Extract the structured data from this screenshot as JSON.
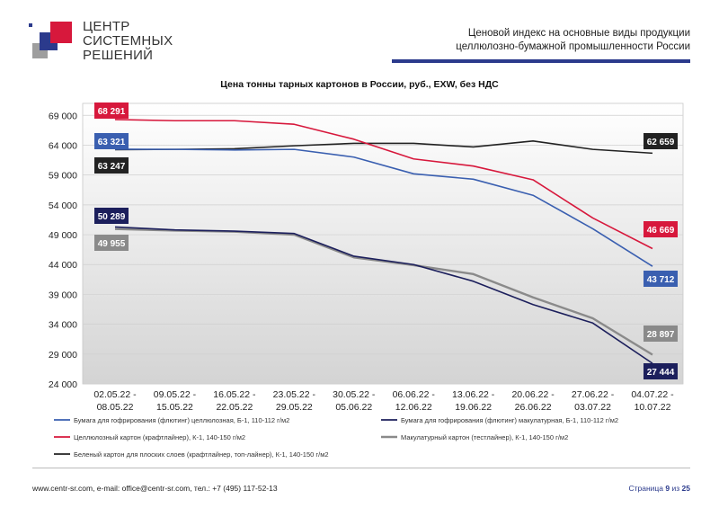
{
  "logo": {
    "lines": [
      "ЦЕНТР",
      "СИСТЕМНЫХ",
      "РЕШЕНИЙ"
    ],
    "colors": [
      "#d7183c",
      "#2b3a8c",
      "#9e9e9e"
    ]
  },
  "header": {
    "title_line1": "Ценовой индекс на основные виды продукции",
    "title_line2": "целлюлозно-бумажной промышленности России",
    "rule_color": "#2b3a8c"
  },
  "chart_data": {
    "type": "line",
    "title": "Цена тонны тарных картонов в России, руб., EXW, без НДС",
    "xlabel": "",
    "ylabel": "",
    "ylim": [
      24000,
      71000
    ],
    "yticks": [
      24000,
      29000,
      34000,
      39000,
      44000,
      49000,
      54000,
      59000,
      64000,
      69000
    ],
    "ytick_labels": [
      "24 000",
      "29 000",
      "34 000",
      "39 000",
      "44 000",
      "49 000",
      "54 000",
      "59 000",
      "64 000",
      "69 000"
    ],
    "categories": [
      [
        "02.05.22 -",
        "08.05.22"
      ],
      [
        "09.05.22 -",
        "15.05.22"
      ],
      [
        "16.05.22 -",
        "22.05.22"
      ],
      [
        "23.05.22 -",
        "29.05.22"
      ],
      [
        "30.05.22 -",
        "05.06.22"
      ],
      [
        "06.06.22 -",
        "12.06.22"
      ],
      [
        "13.06.22 -",
        "19.06.22"
      ],
      [
        "20.06.22 -",
        "26.06.22"
      ],
      [
        "27.06.22 -",
        "03.07.22"
      ],
      [
        "04.07.22 -",
        "10.07.22"
      ]
    ],
    "grid": true,
    "legend_position": "bottom",
    "series": [
      {
        "name": "Бумага для гофрирования (флютинг) целлюлозная, Б-1, 110-112 г/м2",
        "color": "#3a5fb0",
        "values": [
          63321,
          63300,
          63200,
          63300,
          62000,
          59200,
          58300,
          55600,
          50000,
          43712
        ],
        "labels": {
          "first": "63 321",
          "last": "43 712"
        }
      },
      {
        "name": "Бумага для гофрирования (флютинг) макулатурная, Б-1, 110-112 г/м2",
        "color": "#1c1f5c",
        "values": [
          50289,
          49800,
          49600,
          49200,
          45400,
          44000,
          41200,
          37300,
          34200,
          27444
        ],
        "labels": {
          "first": "50 289",
          "last": "27 444"
        }
      },
      {
        "name": "Целлюлозный картон (крафтлайнер), К-1, 140-150 г/м2",
        "color": "#d7183c",
        "values": [
          68291,
          68100,
          68100,
          67500,
          65000,
          61700,
          60500,
          58200,
          51800,
          46669
        ],
        "labels": {
          "first": "68 291",
          "last": "46 669"
        }
      },
      {
        "name": "Макулатурный картон (тестлайнер), К-1, 140-150 г/м2",
        "color": "#8a8a8a",
        "values": [
          49955,
          49700,
          49500,
          49000,
          45200,
          43900,
          42400,
          38500,
          35000,
          28897
        ],
        "labels": {
          "first": "49 955",
          "last": "28 897"
        }
      },
      {
        "name": "Беленый картон для плоских слоев (крафтлайнер, топ-лайнер), К-1, 140-150 г/м2",
        "color": "#222222",
        "values": [
          63247,
          63300,
          63400,
          63900,
          64300,
          64300,
          63700,
          64700,
          63300,
          62659
        ],
        "labels": {
          "first": "63 247",
          "last": "62 659"
        }
      }
    ]
  },
  "footer": {
    "contacts": "www.centr-sr.com, e-mail: office@centr-sr.com, тел.: +7 (495) 117-52-13",
    "page_prefix": "Страница",
    "page_current": "9",
    "page_middle": "из",
    "page_total": "25"
  }
}
